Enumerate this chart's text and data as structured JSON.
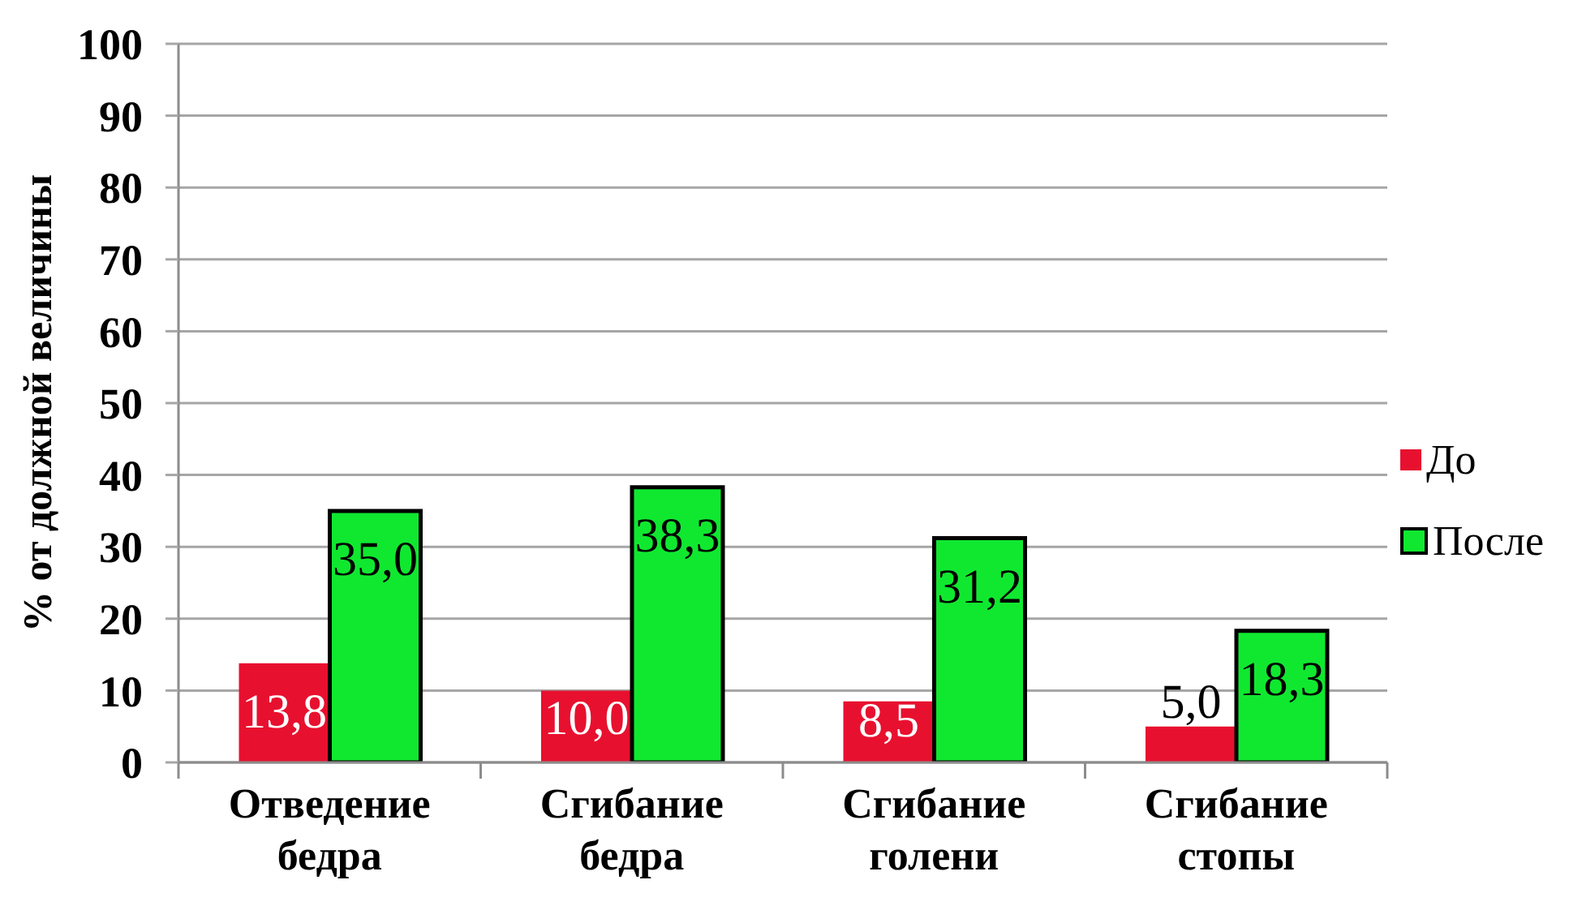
{
  "chart_data": {
    "type": "bar",
    "ylabel": "% от должной величины",
    "categories": [
      "Отведение бедра",
      "Сгибание бедра",
      "Сгибание голени",
      "Сгибание стопы"
    ],
    "series": [
      {
        "name": "До",
        "color": "#e8102f",
        "values": [
          13.8,
          10.0,
          8.5,
          5.0
        ],
        "value_labels": [
          "13,8",
          "10,0",
          "8,5",
          "5,0"
        ]
      },
      {
        "name": "После",
        "color": "#10e830",
        "values": [
          35.0,
          38.3,
          31.2,
          18.3
        ],
        "value_labels": [
          "35,0",
          "38,3",
          "31,2",
          "18,3"
        ]
      }
    ],
    "ylim": [
      0,
      100
    ],
    "yticks": [
      0,
      10,
      20,
      30,
      40,
      50,
      60,
      70,
      80,
      90,
      100
    ],
    "grid": "y",
    "legend": "right"
  }
}
